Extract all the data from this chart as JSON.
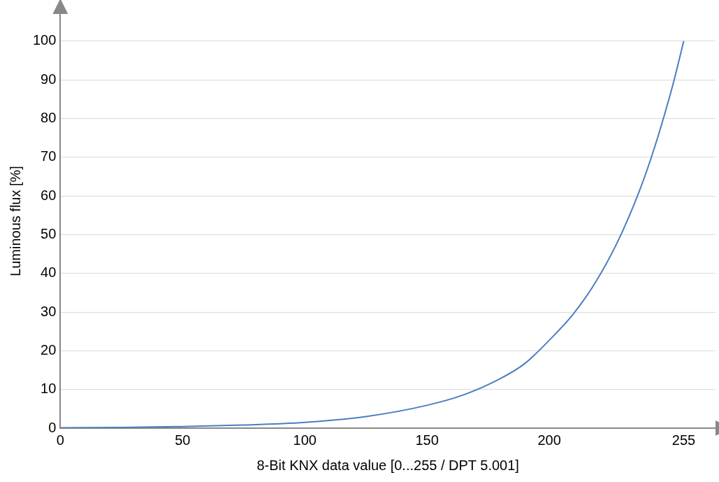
{
  "chart_data": {
    "type": "line",
    "xlabel": "8-Bit KNX data value [0...255 / DPT 5.001]",
    "ylabel": "Luminous flux [%]",
    "x": [
      0,
      25,
      50,
      75,
      100,
      125,
      150,
      165,
      180,
      190,
      200,
      210,
      220,
      230,
      240,
      250,
      255
    ],
    "series": [
      {
        "color": "#4a7ebf",
        "values": [
          0.1,
          0.2,
          0.4,
          0.8,
          1.5,
          3.0,
          5.9,
          8.6,
          12.8,
          16.7,
          22.7,
          29.6,
          38.8,
          50.9,
          66.7,
          87.4,
          100
        ]
      }
    ],
    "xlim": [
      0,
      268
    ],
    "xticks": [
      0,
      50,
      100,
      150,
      200,
      255
    ],
    "ylim": [
      0,
      107
    ],
    "yticks": [
      0,
      10,
      20,
      30,
      40,
      50,
      60,
      70,
      80,
      90,
      100
    ],
    "grid": "y",
    "legend": false,
    "marker": "none",
    "line_style": "solid"
  }
}
